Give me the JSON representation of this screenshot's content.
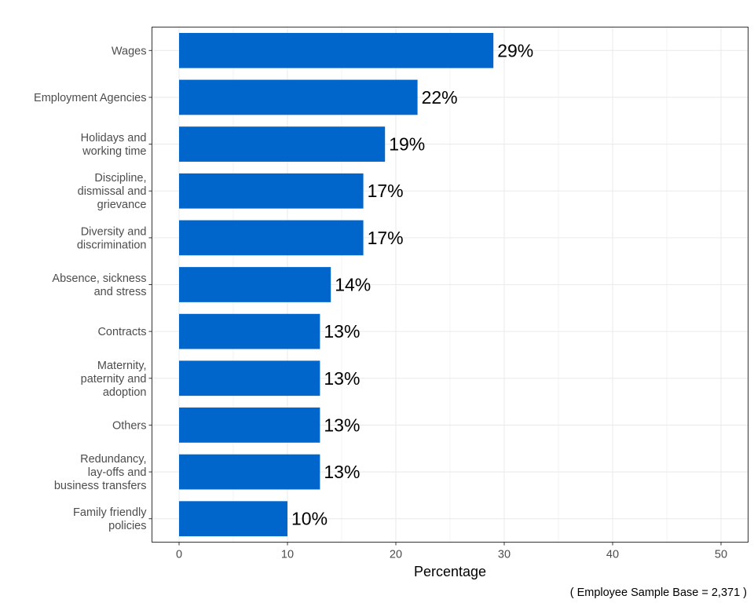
{
  "chart_data": {
    "type": "bar",
    "orientation": "horizontal",
    "categories": [
      "Wages",
      "Employment Agencies",
      "Holidays and\nworking time",
      "Discipline,\ndismissal and\ngrievance",
      "Diversity and\ndiscrimination",
      "Absence, sickness\nand stress",
      "Contracts",
      "Maternity,\npaternity and\nadoption",
      "Others",
      "Redundancy,\nlay-offs and\nbusiness transfers",
      "Family friendly\npolicies"
    ],
    "values": [
      29,
      22,
      19,
      17,
      17,
      14,
      13,
      13,
      13,
      13,
      10
    ],
    "data_labels": [
      "29%",
      "22%",
      "19%",
      "17%",
      "17%",
      "14%",
      "13%",
      "13%",
      "13%",
      "13%",
      "10%"
    ],
    "xlabel": "Percentage",
    "ylabel": "",
    "xlim": [
      -2.5,
      52.5
    ],
    "xticks": [
      0,
      10,
      20,
      30,
      40,
      50
    ],
    "grid": true,
    "bar_color": "#0066CC",
    "caption": "( Employee Sample Base =  2,371 )"
  }
}
